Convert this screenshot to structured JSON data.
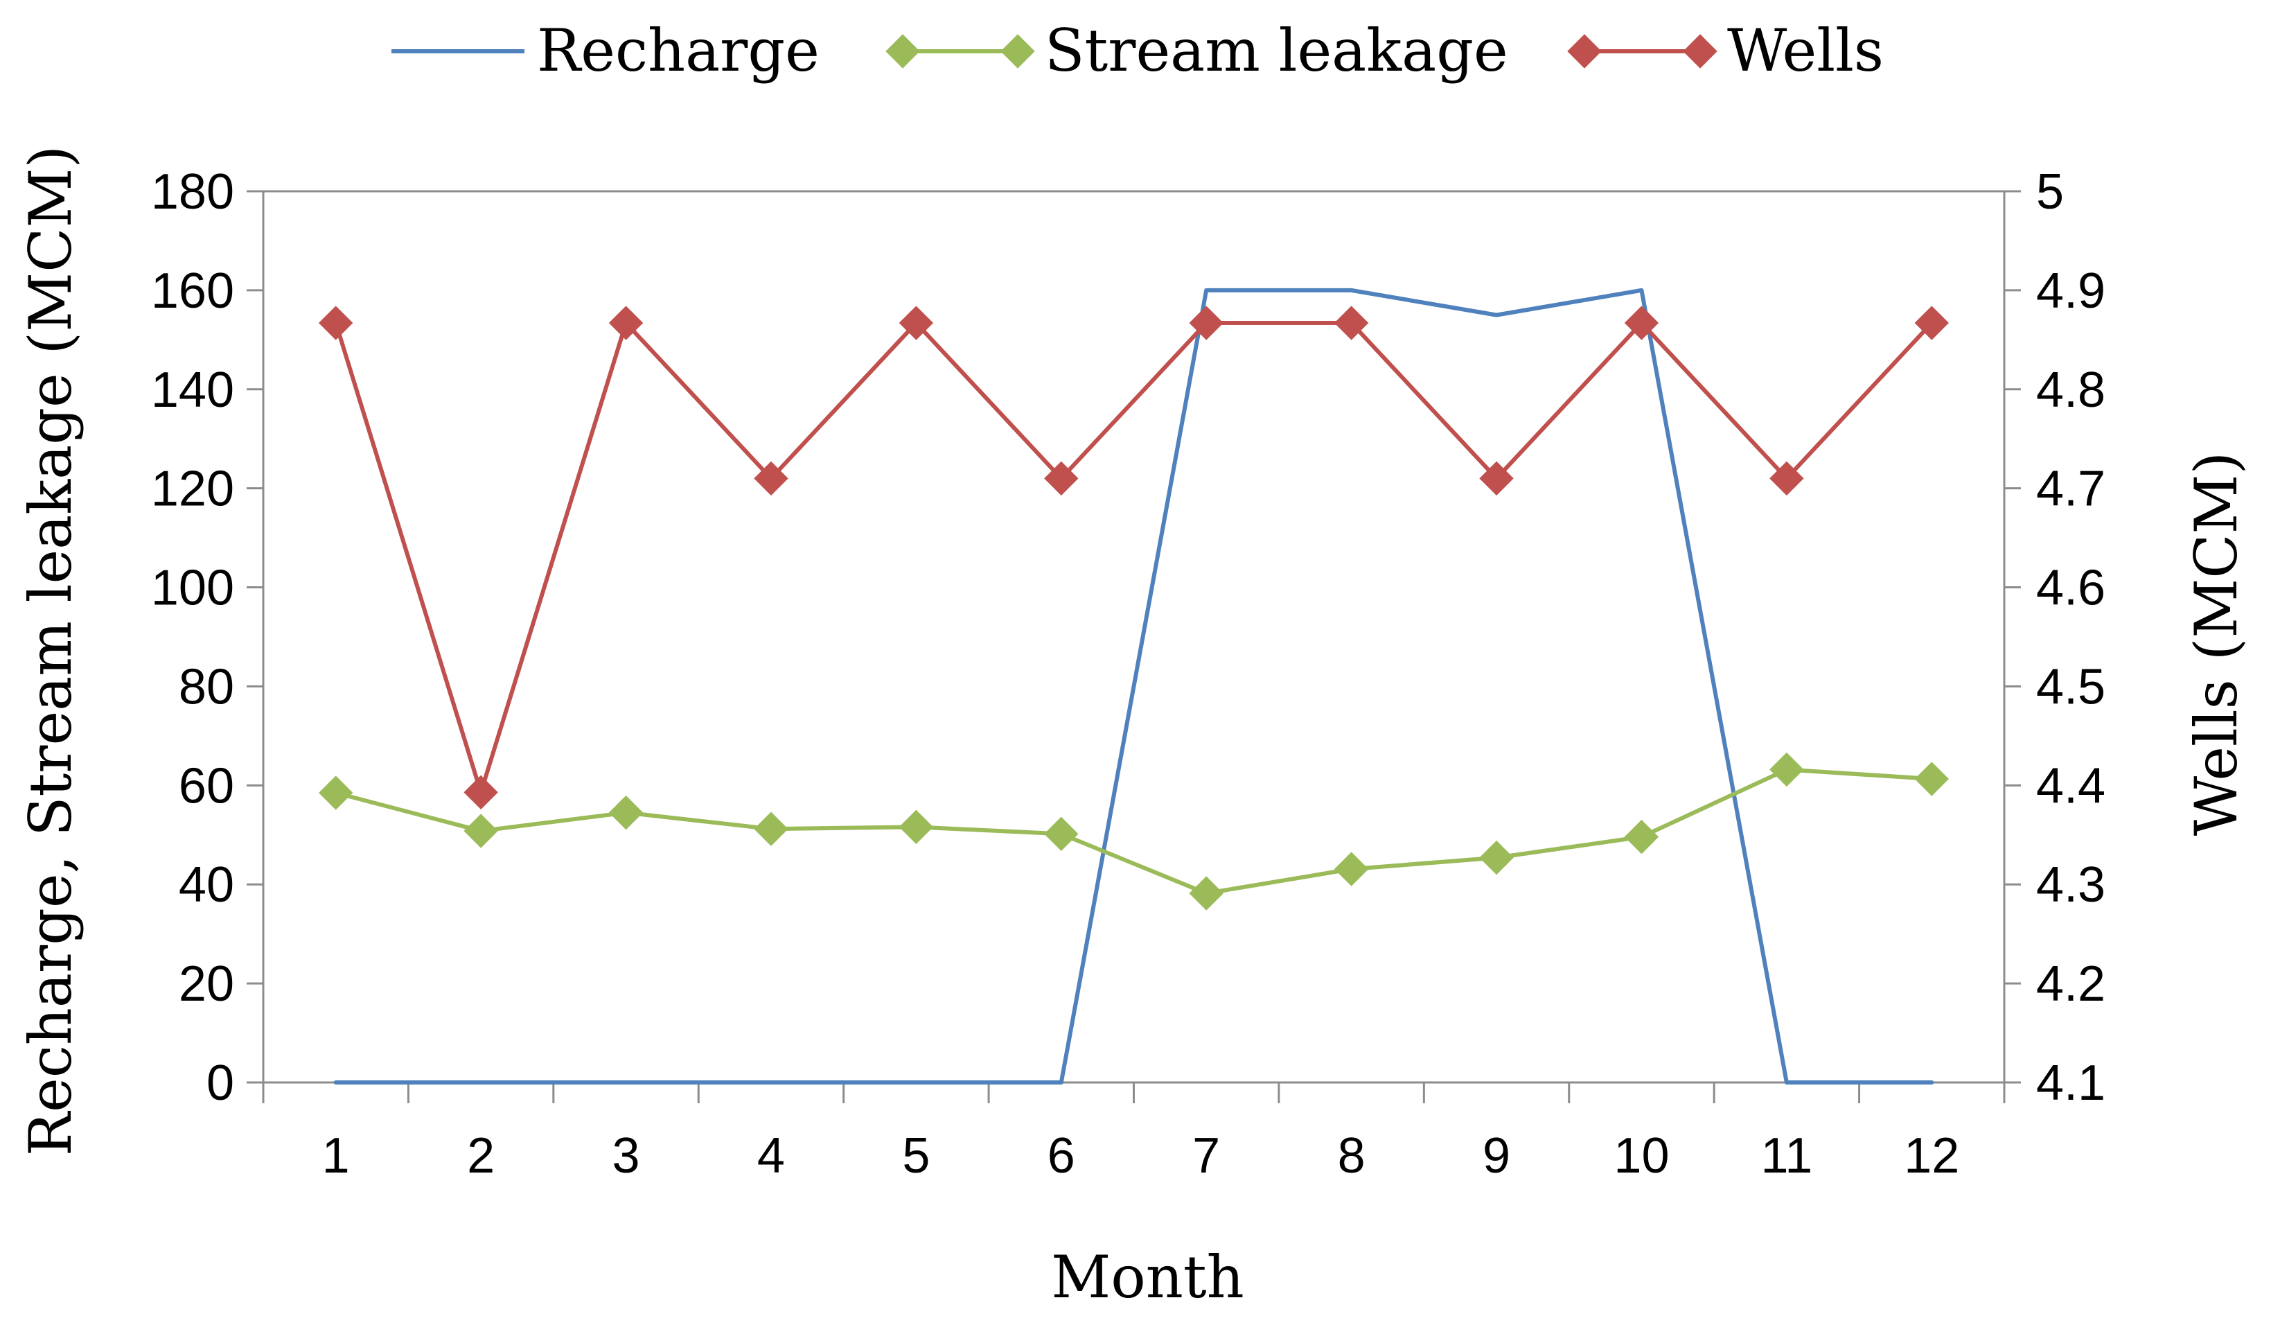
{
  "chart_data": {
    "type": "line",
    "title": "",
    "xlabel": "Month",
    "ylabel": "Recharge, Stream leakage (MCM)",
    "y2label": "Wells (MCM)",
    "categories": [
      "1",
      "2",
      "3",
      "4",
      "5",
      "6",
      "7",
      "8",
      "9",
      "10",
      "11",
      "12"
    ],
    "ylim": [
      0,
      180
    ],
    "yticks": [
      "0",
      "20",
      "40",
      "60",
      "80",
      "100",
      "120",
      "140",
      "160",
      "180"
    ],
    "y2lim": [
      4.1,
      5.0
    ],
    "y2ticks": [
      "4.1",
      "4.2",
      "4.3",
      "4.4",
      "4.5",
      "4.6",
      "4.7",
      "4.8",
      "4.9",
      "5"
    ],
    "legend_position": "top",
    "series": [
      {
        "name": "Recharge",
        "axis": "left",
        "color": "#4F81BD",
        "marker": "none",
        "values": [
          0,
          0,
          0,
          0,
          0,
          0,
          160,
          160,
          155,
          160,
          0,
          0
        ]
      },
      {
        "name": "Stream leakage",
        "axis": "left",
        "color": "#9BBB59",
        "marker": "diamond",
        "values": [
          58.5,
          50.8,
          54.5,
          51.2,
          51.6,
          50.2,
          38.2,
          43.1,
          45.4,
          49.6,
          63.2,
          61.3
        ]
      },
      {
        "name": "Wells",
        "axis": "right",
        "color": "#C0504D",
        "marker": "diamond",
        "values": [
          4.867,
          4.393,
          4.867,
          4.71,
          4.867,
          4.71,
          4.867,
          4.867,
          4.71,
          4.867,
          4.71,
          4.867
        ]
      }
    ]
  }
}
